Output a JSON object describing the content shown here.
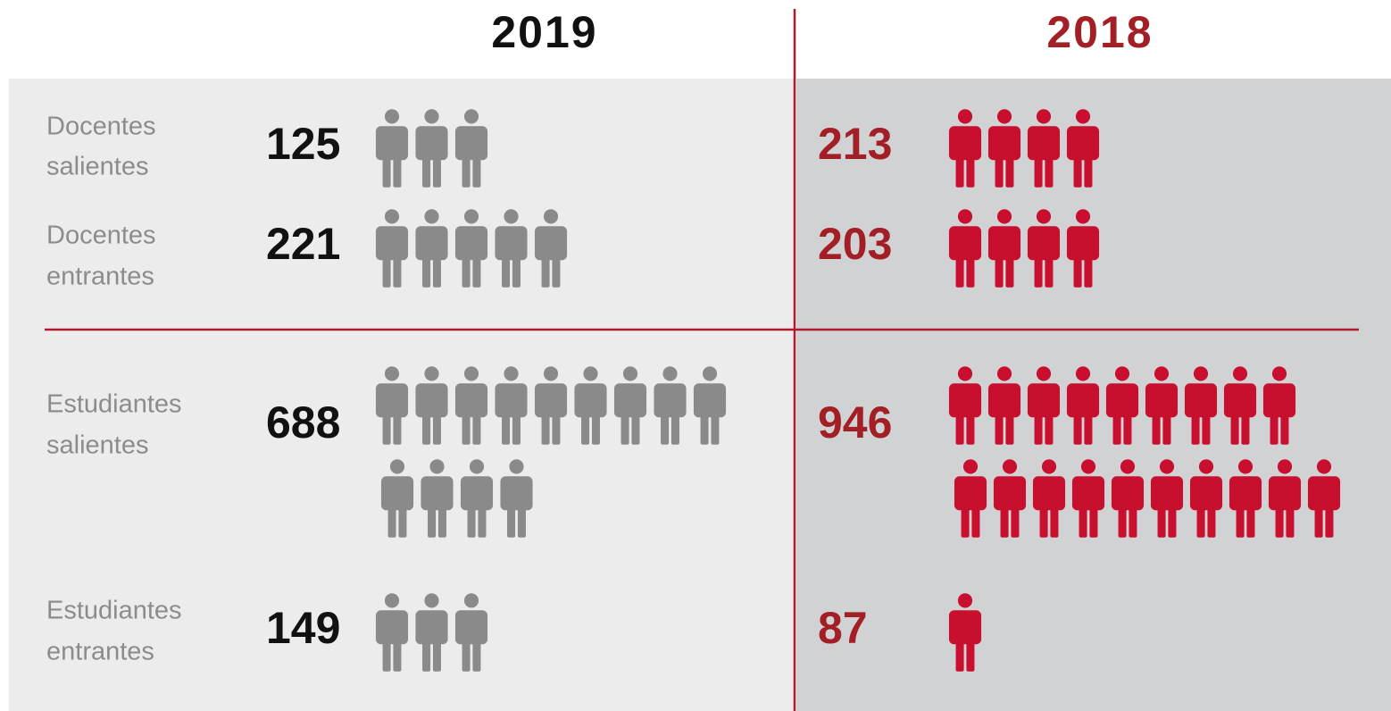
{
  "columns": [
    {
      "year": "2019",
      "rows": [
        {
          "label": [
            "Docentes",
            "salientes"
          ],
          "number": "125",
          "icon_rows": [
            3
          ]
        },
        {
          "label": [
            "Docentes",
            "entrantes"
          ],
          "number": "221",
          "icon_rows": [
            5
          ]
        },
        {
          "label": [
            "Estudiantes",
            "salientes"
          ],
          "number": "688",
          "icon_rows": [
            9,
            4
          ]
        },
        {
          "label": [
            "Estudiantes",
            "entrantes"
          ],
          "number": "149",
          "icon_rows": [
            3
          ]
        }
      ]
    },
    {
      "year": "2018",
      "rows": [
        {
          "number": "213",
          "icon_rows": [
            4
          ]
        },
        {
          "number": "203",
          "icon_rows": [
            4
          ]
        },
        {
          "number": "946",
          "icon_rows": [
            9,
            10
          ]
        },
        {
          "number": "87",
          "icon_rows": [
            1
          ]
        }
      ]
    }
  ]
}
